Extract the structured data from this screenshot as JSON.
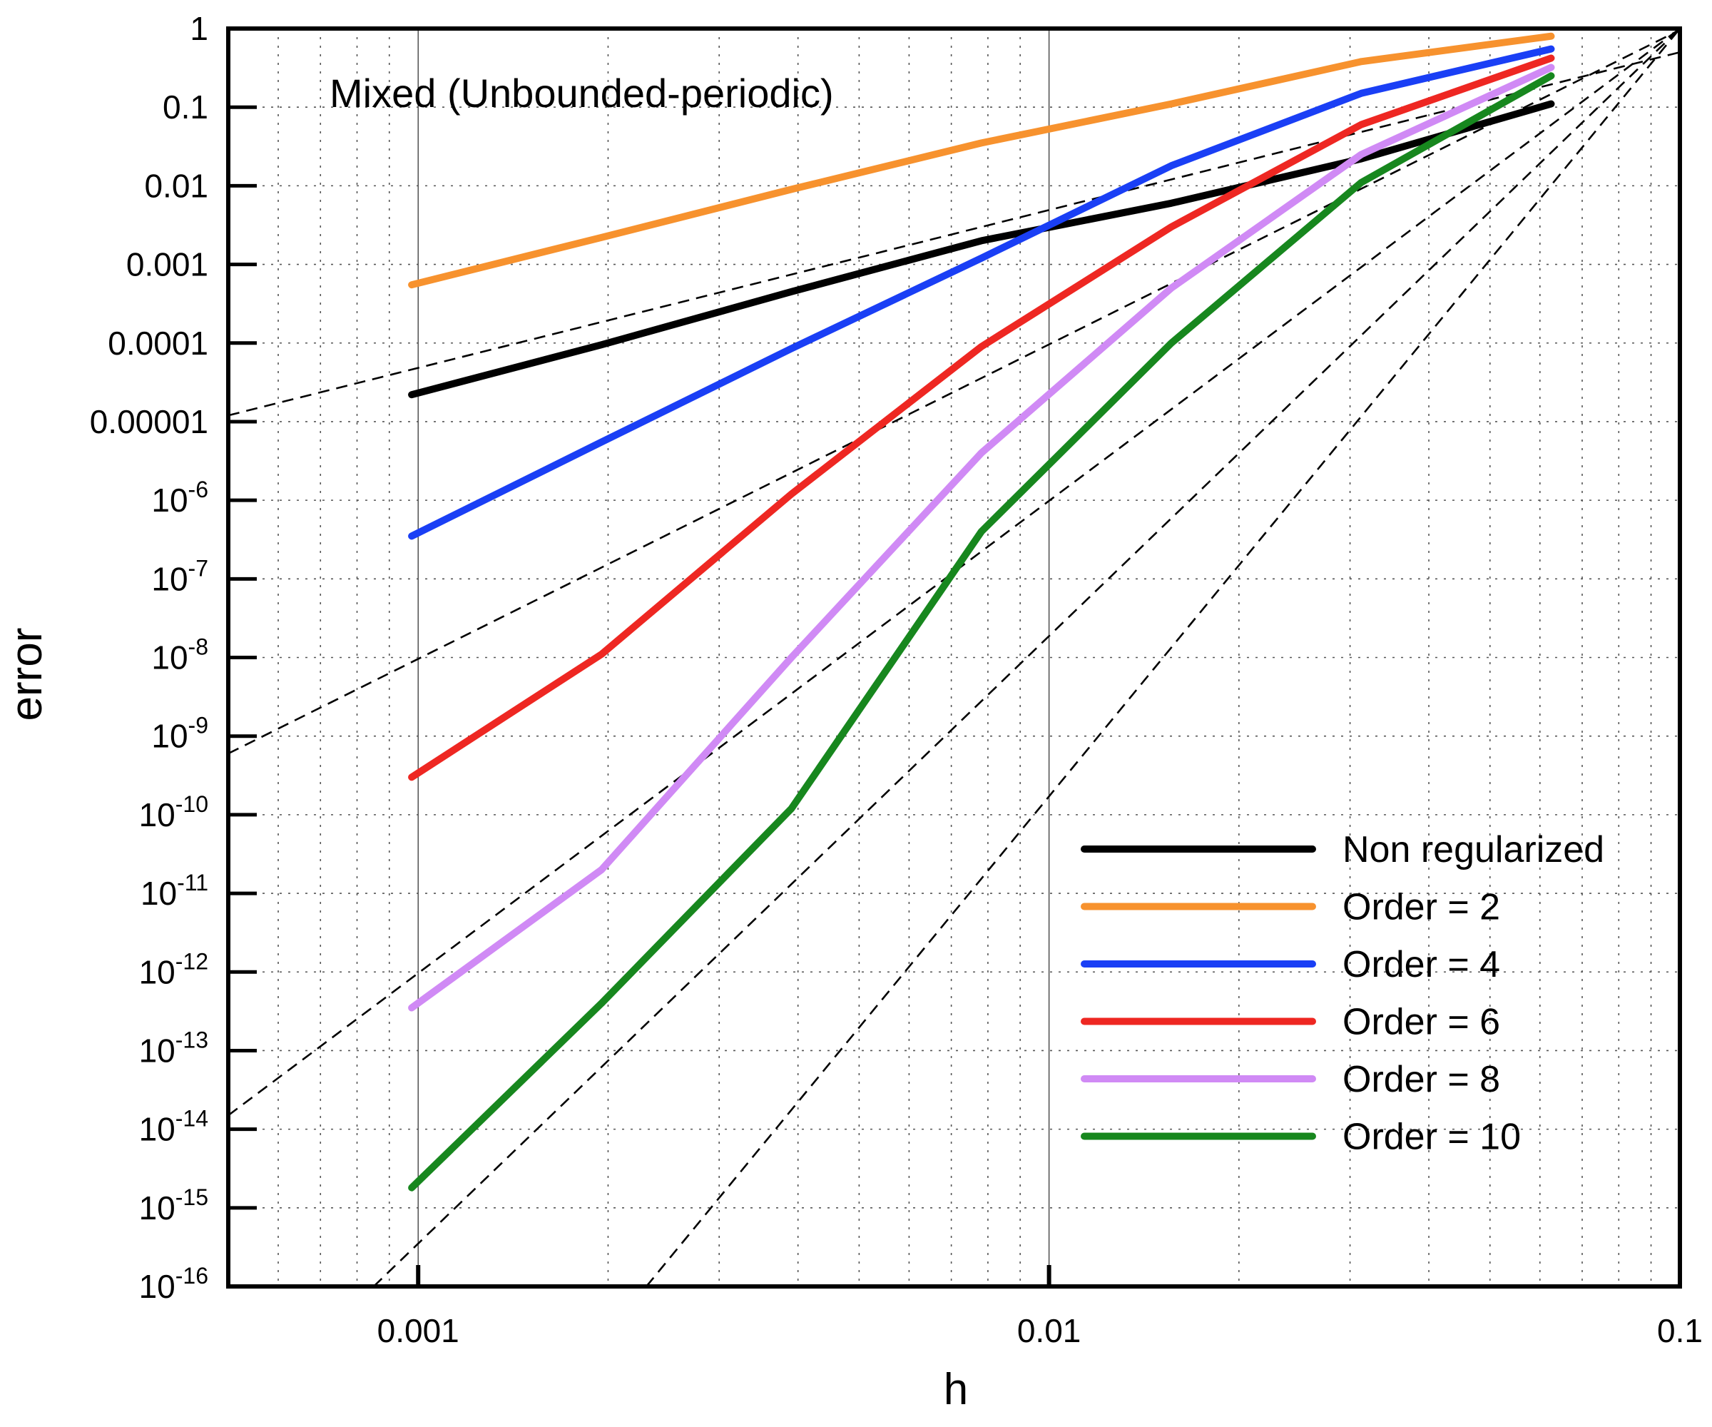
{
  "chart_data": {
    "type": "line",
    "title": "",
    "annotation": "Mixed (Unbounded-periodic)",
    "xlabel": "h",
    "ylabel": "error",
    "xscale": "log",
    "yscale": "log",
    "xlim": [
      0.0005,
      0.1
    ],
    "ylim": [
      1e-16,
      1
    ],
    "grid": true,
    "legend_position": "bottom-right",
    "x_ticks": [
      {
        "value": 0.001,
        "label": "0.001"
      },
      {
        "value": 0.01,
        "label": "0.01"
      },
      {
        "value": 0.1,
        "label": "0.1"
      }
    ],
    "y_ticks": [
      {
        "value": 1,
        "base": "1",
        "exp": ""
      },
      {
        "value": 0.1,
        "base": "0.1",
        "exp": ""
      },
      {
        "value": 0.01,
        "base": "0.01",
        "exp": ""
      },
      {
        "value": 0.001,
        "base": "0.001",
        "exp": ""
      },
      {
        "value": 0.0001,
        "base": "0.0001",
        "exp": ""
      },
      {
        "value": 1e-05,
        "base": "0.00001",
        "exp": ""
      },
      {
        "value": 1e-06,
        "base": "10",
        "exp": "-6"
      },
      {
        "value": 1e-07,
        "base": "10",
        "exp": "-7"
      },
      {
        "value": 1e-08,
        "base": "10",
        "exp": "-8"
      },
      {
        "value": 1e-09,
        "base": "10",
        "exp": "-9"
      },
      {
        "value": 1e-10,
        "base": "10",
        "exp": "-10"
      },
      {
        "value": 1e-11,
        "base": "10",
        "exp": "-11"
      },
      {
        "value": 1e-12,
        "base": "10",
        "exp": "-12"
      },
      {
        "value": 1e-13,
        "base": "10",
        "exp": "-13"
      },
      {
        "value": 1e-14,
        "base": "10",
        "exp": "-14"
      },
      {
        "value": 1e-15,
        "base": "10",
        "exp": "-15"
      },
      {
        "value": 1e-16,
        "base": "10",
        "exp": "-16"
      }
    ],
    "x": [
      0.0009766,
      0.001953,
      0.003906,
      0.007813,
      0.01563,
      0.03125,
      0.0625
    ],
    "series": [
      {
        "name": "Non regularized",
        "color": "#000000",
        "values": [
          2.2e-05,
          9.5e-05,
          0.00045,
          0.002,
          0.006,
          0.022,
          0.11
        ]
      },
      {
        "name": "Order = 2",
        "color": "#f7922e",
        "values": [
          0.00055,
          0.0022,
          0.009,
          0.035,
          0.11,
          0.38,
          0.8
        ]
      },
      {
        "name": "Order = 4",
        "color": "#1a3ff5",
        "values": [
          3.5e-07,
          5.5e-06,
          8.5e-05,
          0.0012,
          0.018,
          0.15,
          0.55
        ]
      },
      {
        "name": "Order = 6",
        "color": "#ee2722",
        "values": [
          3e-10,
          1.1e-08,
          1.2e-06,
          9e-05,
          0.003,
          0.06,
          0.42
        ]
      },
      {
        "name": "Order = 8",
        "color": "#d08af5",
        "values": [
          3.5e-13,
          2e-11,
          1e-08,
          4e-06,
          0.0005,
          0.025,
          0.32
        ]
      },
      {
        "name": "Order = 10",
        "color": "#17871e",
        "values": [
          1.8e-15,
          4e-13,
          1.2e-10,
          4e-07,
          0.0001,
          0.011,
          0.25
        ]
      }
    ],
    "reference_lines": [
      {
        "name": "slope-2",
        "style": "dashed",
        "points": [
          [
            0.0005,
            1.2e-05
          ],
          [
            0.1,
            0.5
          ]
        ]
      },
      {
        "name": "slope-4",
        "style": "dashed",
        "points": [
          [
            0.0005,
            6e-10
          ],
          [
            0.1,
            0.96
          ]
        ]
      },
      {
        "name": "slope-6",
        "style": "dashed",
        "points": [
          [
            0.0005,
            1.5e-14
          ],
          [
            0.1,
            1
          ]
        ]
      },
      {
        "name": "slope-8",
        "style": "dashed",
        "points": [
          [
            0.00085,
            1e-16
          ],
          [
            0.1,
            1
          ]
        ]
      },
      {
        "name": "slope-10",
        "style": "dashed",
        "points": [
          [
            0.0023,
            1e-16
          ],
          [
            0.1,
            1
          ]
        ]
      }
    ]
  }
}
